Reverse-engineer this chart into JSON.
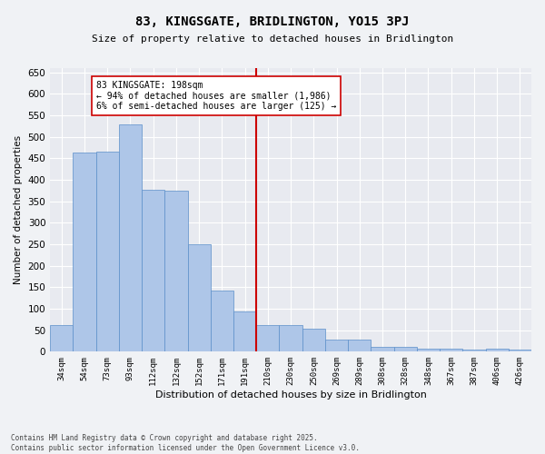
{
  "title": "83, KINGSGATE, BRIDLINGTON, YO15 3PJ",
  "subtitle": "Size of property relative to detached houses in Bridlington",
  "xlabel": "Distribution of detached houses by size in Bridlington",
  "ylabel": "Number of detached properties",
  "categories": [
    "34sqm",
    "54sqm",
    "73sqm",
    "93sqm",
    "112sqm",
    "132sqm",
    "152sqm",
    "171sqm",
    "191sqm",
    "210sqm",
    "230sqm",
    "250sqm",
    "269sqm",
    "289sqm",
    "308sqm",
    "328sqm",
    "348sqm",
    "367sqm",
    "387sqm",
    "406sqm",
    "426sqm"
  ],
  "values": [
    62,
    464,
    465,
    530,
    376,
    375,
    251,
    143,
    94,
    63,
    63,
    54,
    28,
    28,
    11,
    11,
    8,
    7,
    5,
    7,
    4
  ],
  "bar_color": "#aec6e8",
  "bar_edge_color": "#5b8fc9",
  "vline_x": 8.5,
  "vline_color": "#cc0000",
  "annotation_text": "83 KINGSGATE: 198sqm\n← 94% of detached houses are smaller (1,986)\n6% of semi-detached houses are larger (125) →",
  "annotation_box_color": "#ffffff",
  "annotation_box_edge": "#cc0000",
  "ylim": [
    0,
    660
  ],
  "yticks": [
    0,
    50,
    100,
    150,
    200,
    250,
    300,
    350,
    400,
    450,
    500,
    550,
    600,
    650
  ],
  "fig_bg_color": "#f0f2f5",
  "axes_bg_color": "#e8eaf0",
  "grid_color": "#ffffff",
  "footer_line1": "Contains HM Land Registry data © Crown copyright and database right 2025.",
  "footer_line2": "Contains public sector information licensed under the Open Government Licence v3.0."
}
